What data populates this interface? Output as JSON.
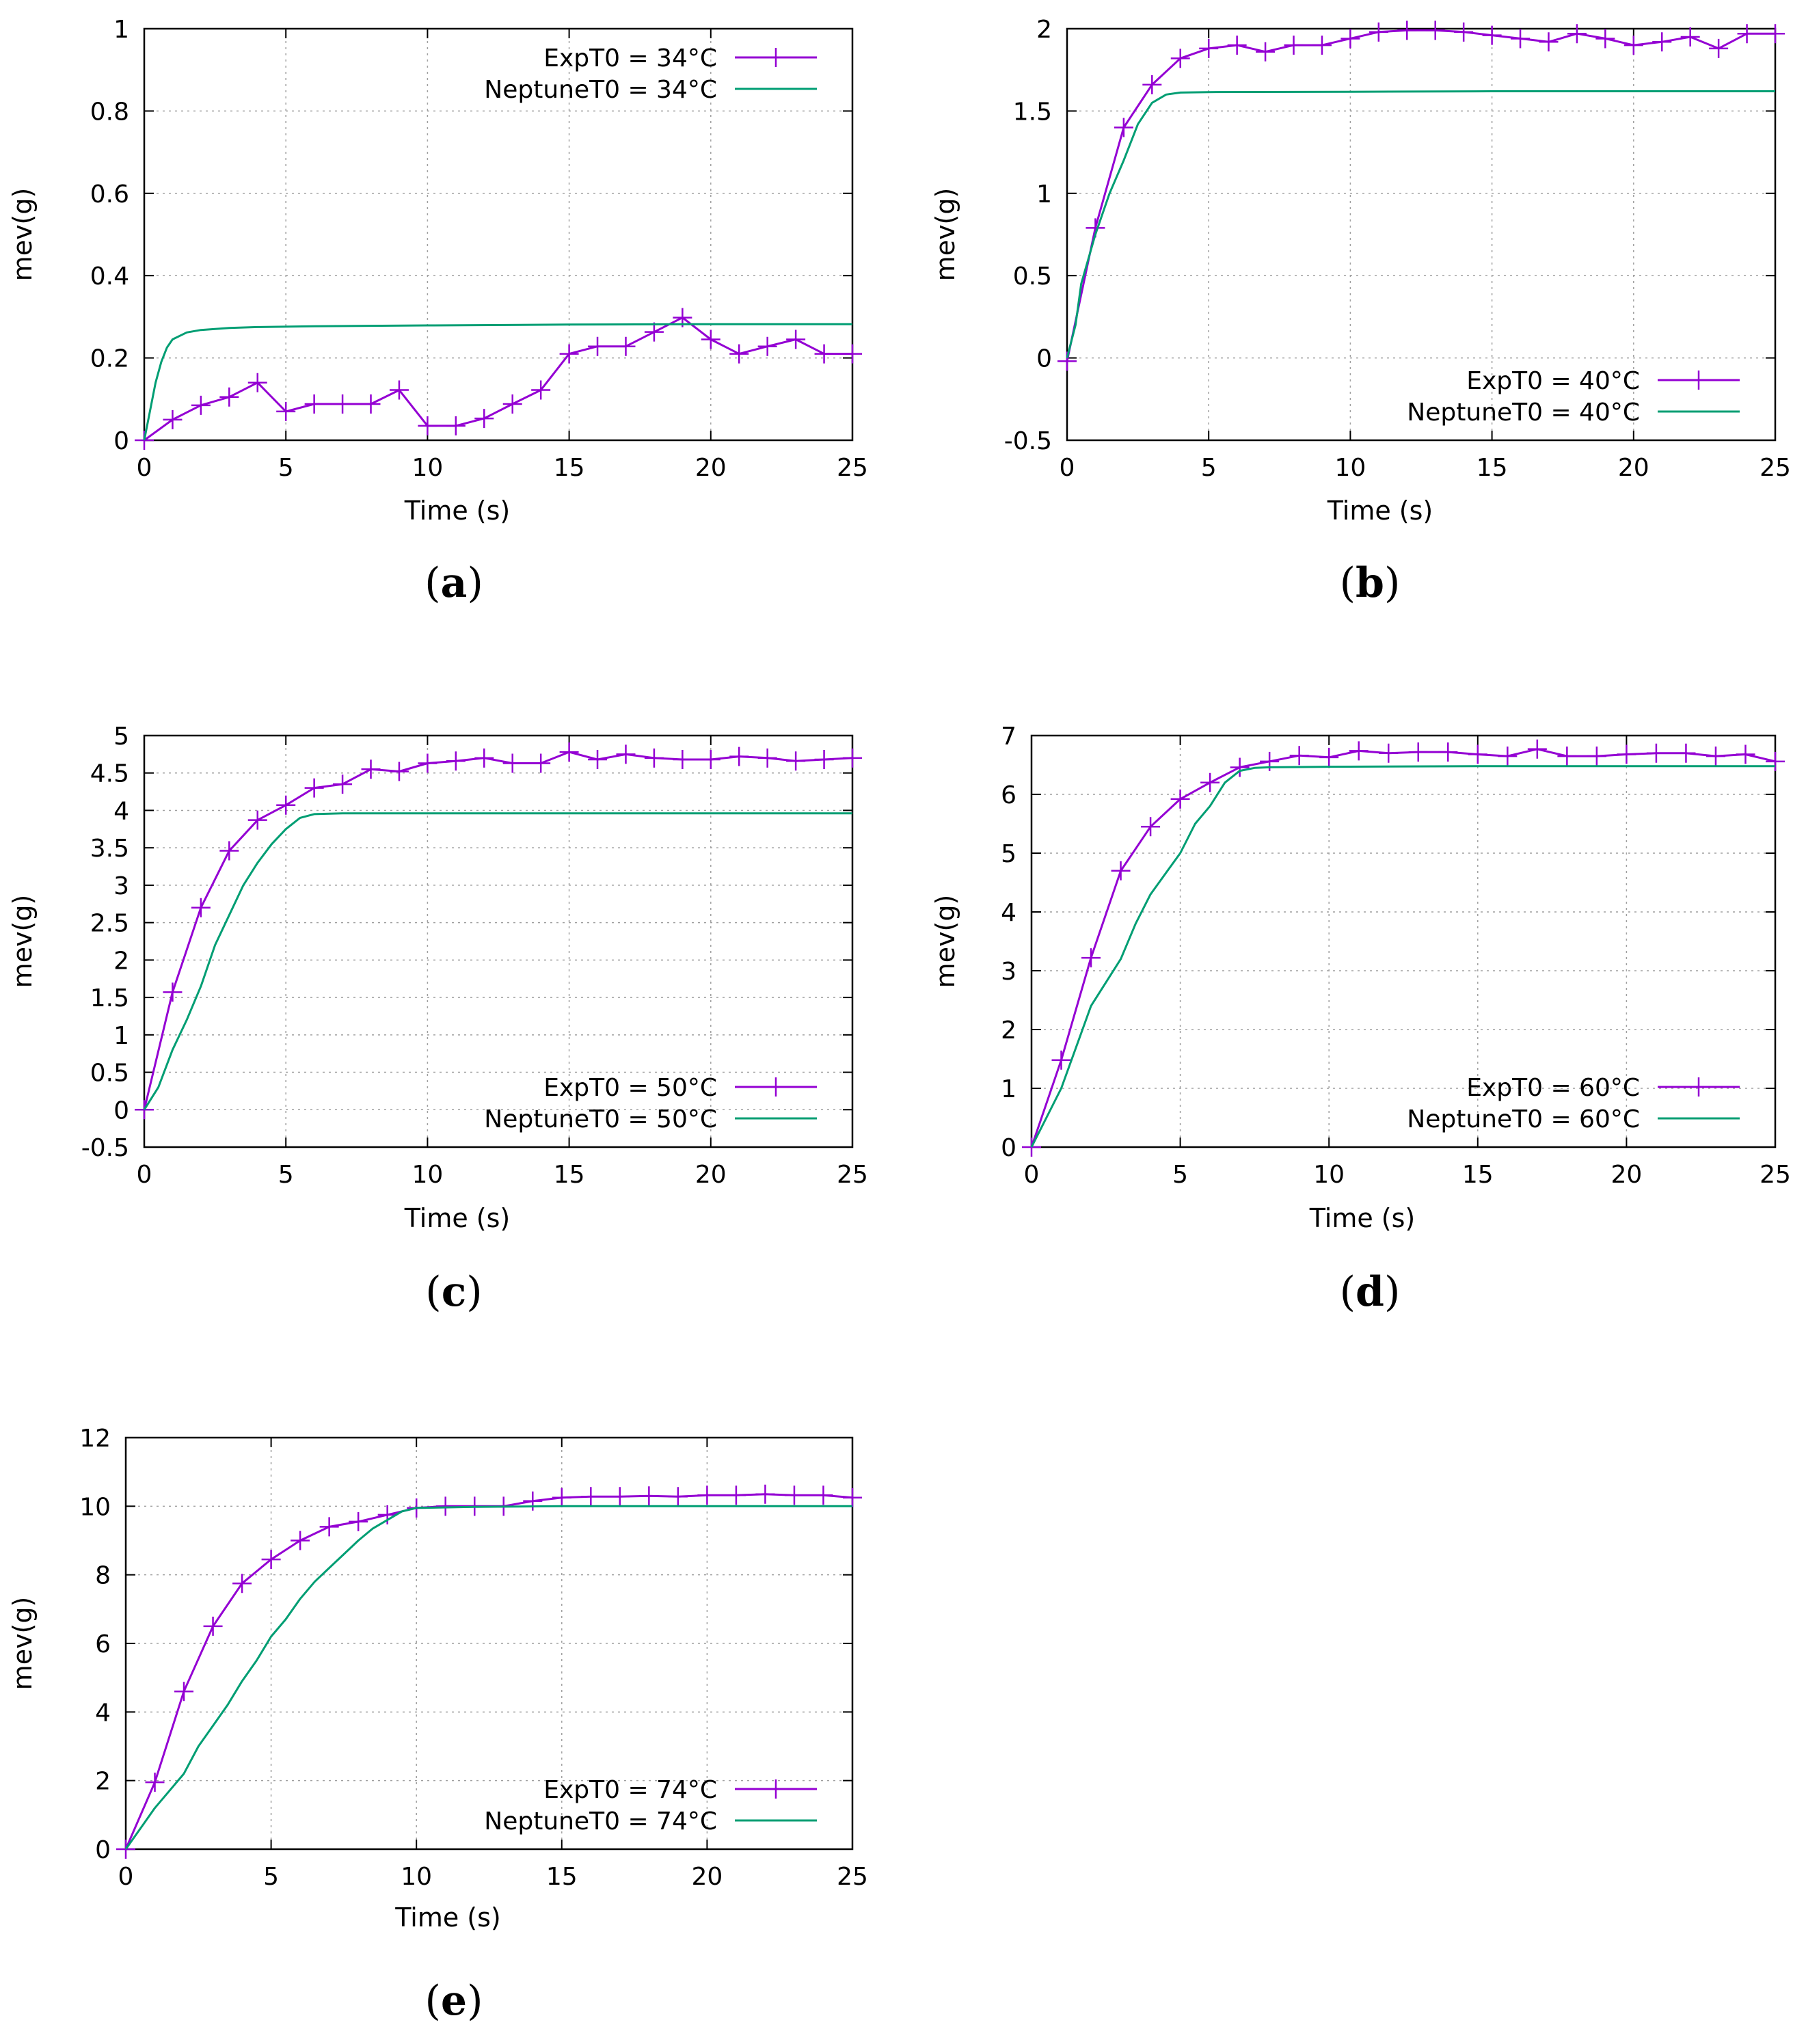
{
  "colors": {
    "exp": "#9400d3",
    "neptune": "#009e73",
    "grid": "#a0a0a0",
    "axis": "#000000"
  },
  "chart_data": [
    {
      "type": "line",
      "caption": "a",
      "xlabel": "Time (s)",
      "ylabel": "mev(g)",
      "xlim": [
        0,
        25
      ],
      "ylim": [
        0,
        1
      ],
      "xticks": [
        0,
        5,
        10,
        15,
        20,
        25
      ],
      "xtick_labels": [
        "0",
        "5",
        "10",
        "15",
        "20",
        "25"
      ],
      "yticks": [
        0,
        0.2,
        0.4,
        0.6,
        0.8,
        1
      ],
      "ytick_labels": [
        "0",
        "0.2",
        "0.4",
        "0.6",
        "0.8",
        "1"
      ],
      "grid": true,
      "legend_position": "top-right",
      "series": [
        {
          "name": "ExpT0 = 34°C",
          "kind": "exp",
          "markers": true,
          "x": [
            0,
            1,
            2,
            3,
            4,
            5,
            6,
            7,
            8,
            9,
            10,
            11,
            12,
            13,
            14,
            15,
            16,
            17,
            18,
            19,
            20,
            21,
            22,
            23,
            24,
            25
          ],
          "y": [
            0,
            0.05,
            0.085,
            0.105,
            0.14,
            0.07,
            0.088,
            0.088,
            0.088,
            0.122,
            0.035,
            0.035,
            0.053,
            0.088,
            0.122,
            0.21,
            0.228,
            0.228,
            0.263,
            0.298,
            0.245,
            0.21,
            0.228,
            0.245,
            0.21,
            0.21
          ]
        },
        {
          "name": "NeptuneT0 = 34°C",
          "kind": "neptune",
          "markers": false,
          "x": [
            0,
            0.2,
            0.4,
            0.6,
            0.8,
            1,
            1.5,
            2,
            3,
            4,
            6,
            10,
            15,
            20,
            25
          ],
          "y": [
            0,
            0.07,
            0.14,
            0.19,
            0.225,
            0.245,
            0.262,
            0.268,
            0.273,
            0.275,
            0.277,
            0.279,
            0.281,
            0.282,
            0.282
          ]
        }
      ]
    },
    {
      "type": "line",
      "caption": "b",
      "xlabel": "Time (s)",
      "ylabel": "mev(g)",
      "xlim": [
        0,
        25
      ],
      "ylim": [
        -0.5,
        2
      ],
      "xticks": [
        0,
        5,
        10,
        15,
        20,
        25
      ],
      "xtick_labels": [
        "0",
        "5",
        "10",
        "15",
        "20",
        "25"
      ],
      "yticks": [
        -0.5,
        0,
        0.5,
        1,
        1.5,
        2
      ],
      "ytick_labels": [
        "-0.5",
        "0",
        "0.5",
        "1",
        "1.5",
        "2"
      ],
      "grid": true,
      "legend_position": "bottom-right",
      "series": [
        {
          "name": "ExpT0 = 40°C",
          "kind": "exp",
          "markers": true,
          "x": [
            0,
            1,
            2,
            3,
            4,
            5,
            6,
            7,
            8,
            9,
            10,
            11,
            12,
            13,
            14,
            15,
            16,
            17,
            18,
            19,
            20,
            21,
            22,
            23,
            24,
            25
          ],
          "y": [
            -0.02,
            0.79,
            1.4,
            1.66,
            1.82,
            1.88,
            1.9,
            1.86,
            1.9,
            1.9,
            1.94,
            1.98,
            1.99,
            1.99,
            1.98,
            1.96,
            1.94,
            1.92,
            1.97,
            1.94,
            1.9,
            1.92,
            1.95,
            1.88,
            1.97,
            1.97
          ]
        },
        {
          "name": "NeptuneT0 = 40°C",
          "kind": "neptune",
          "markers": false,
          "x": [
            0,
            0.3,
            0.5,
            1,
            1.5,
            2,
            2.5,
            3,
            3.5,
            4,
            5,
            10,
            15,
            20,
            25
          ],
          "y": [
            0,
            0.2,
            0.45,
            0.75,
            1.0,
            1.2,
            1.42,
            1.55,
            1.6,
            1.612,
            1.615,
            1.617,
            1.62,
            1.62,
            1.62
          ]
        }
      ]
    },
    {
      "type": "line",
      "caption": "c",
      "xlabel": "Time (s)",
      "ylabel": "mev(g)",
      "xlim": [
        0,
        25
      ],
      "ylim": [
        -0.5,
        5
      ],
      "xticks": [
        0,
        5,
        10,
        15,
        20,
        25
      ],
      "xtick_labels": [
        "0",
        "5",
        "10",
        "15",
        "20",
        "25"
      ],
      "yticks": [
        -0.5,
        0,
        0.5,
        1,
        1.5,
        2,
        2.5,
        3,
        3.5,
        4,
        4.5,
        5
      ],
      "ytick_labels": [
        "-0.5",
        "0",
        "0.5",
        "1",
        "1.5",
        "2",
        "2.5",
        "3",
        "3.5",
        "4",
        "4.5",
        "5"
      ],
      "grid": true,
      "legend_position": "bottom-right",
      "series": [
        {
          "name": "ExpT0 = 50°C",
          "kind": "exp",
          "markers": true,
          "x": [
            0,
            1,
            2,
            3,
            4,
            5,
            6,
            7,
            8,
            9,
            10,
            11,
            12,
            13,
            14,
            15,
            16,
            17,
            18,
            19,
            20,
            21,
            22,
            23,
            24,
            25
          ],
          "y": [
            0,
            1.57,
            2.7,
            3.46,
            3.87,
            4.07,
            4.3,
            4.35,
            4.55,
            4.52,
            4.63,
            4.66,
            4.7,
            4.63,
            4.63,
            4.78,
            4.68,
            4.75,
            4.7,
            4.68,
            4.68,
            4.72,
            4.7,
            4.66,
            4.68,
            4.7
          ]
        },
        {
          "name": "NeptuneT0 = 50°C",
          "kind": "neptune",
          "markers": false,
          "x": [
            0,
            0.5,
            1,
            1.5,
            2,
            2.5,
            3,
            3.5,
            4,
            4.5,
            5,
            5.5,
            6,
            7,
            10,
            15,
            20,
            25
          ],
          "y": [
            0,
            0.3,
            0.8,
            1.2,
            1.65,
            2.2,
            2.6,
            3.0,
            3.3,
            3.55,
            3.75,
            3.9,
            3.95,
            3.96,
            3.96,
            3.96,
            3.96,
            3.96
          ]
        }
      ]
    },
    {
      "type": "line",
      "caption": "d",
      "xlabel": "Time (s)",
      "ylabel": "mev(g)",
      "xlim": [
        0,
        25
      ],
      "ylim": [
        0,
        7
      ],
      "xticks": [
        0,
        5,
        10,
        15,
        20,
        25
      ],
      "xtick_labels": [
        "0",
        "5",
        "10",
        "15",
        "20",
        "25"
      ],
      "yticks": [
        0,
        1,
        2,
        3,
        4,
        5,
        6,
        7
      ],
      "ytick_labels": [
        "0",
        "1",
        "2",
        "3",
        "4",
        "5",
        "6",
        "7"
      ],
      "grid": true,
      "legend_position": "bottom-right",
      "series": [
        {
          "name": "ExpT0 = 60°C",
          "kind": "exp",
          "markers": true,
          "x": [
            0,
            1,
            2,
            3,
            4,
            5,
            6,
            7,
            8,
            9,
            10,
            11,
            12,
            13,
            14,
            15,
            16,
            17,
            18,
            19,
            20,
            21,
            22,
            23,
            24,
            25
          ],
          "y": [
            0,
            1.48,
            3.22,
            4.7,
            5.45,
            5.92,
            6.2,
            6.46,
            6.56,
            6.66,
            6.63,
            6.74,
            6.7,
            6.72,
            6.72,
            6.68,
            6.65,
            6.77,
            6.65,
            6.65,
            6.68,
            6.7,
            6.7,
            6.65,
            6.68,
            6.56
          ]
        },
        {
          "name": "NeptuneT0 = 60°C",
          "kind": "neptune",
          "markers": false,
          "x": [
            0,
            0.5,
            1,
            1.5,
            2,
            2.5,
            3,
            3.5,
            4,
            4.5,
            5,
            5.5,
            6,
            6.5,
            7,
            7.5,
            8,
            10,
            15,
            20,
            25
          ],
          "y": [
            0,
            0.5,
            1.0,
            1.7,
            2.4,
            2.8,
            3.2,
            3.8,
            4.3,
            4.65,
            5.0,
            5.5,
            5.8,
            6.2,
            6.4,
            6.45,
            6.46,
            6.47,
            6.48,
            6.48,
            6.48
          ]
        }
      ]
    },
    {
      "type": "line",
      "caption": "e",
      "xlabel": "Time (s)",
      "ylabel": "mev(g)",
      "xlim": [
        0,
        25
      ],
      "ylim": [
        0,
        12
      ],
      "xticks": [
        0,
        5,
        10,
        15,
        20,
        25
      ],
      "xtick_labels": [
        "0",
        "5",
        "10",
        "15",
        "20",
        "25"
      ],
      "yticks": [
        0,
        2,
        4,
        6,
        8,
        10,
        12
      ],
      "ytick_labels": [
        "0",
        "2",
        "4",
        "6",
        "8",
        "10",
        "12"
      ],
      "grid": true,
      "legend_position": "bottom-right",
      "series": [
        {
          "name": "ExpT0 = 74°C",
          "kind": "exp",
          "markers": true,
          "x": [
            0,
            1,
            2,
            3,
            4,
            5,
            6,
            7,
            8,
            9,
            10,
            11,
            12,
            13,
            14,
            15,
            16,
            17,
            18,
            19,
            20,
            21,
            22,
            23,
            24,
            25
          ],
          "y": [
            0,
            1.95,
            4.6,
            6.5,
            7.75,
            8.45,
            9.0,
            9.4,
            9.55,
            9.75,
            9.95,
            10.0,
            10.0,
            10.0,
            10.15,
            10.25,
            10.28,
            10.28,
            10.3,
            10.28,
            10.32,
            10.32,
            10.35,
            10.32,
            10.32,
            10.25
          ]
        },
        {
          "name": "NeptuneT0 = 74°C",
          "kind": "neptune",
          "markers": false,
          "x": [
            0,
            0.5,
            1,
            1.5,
            2,
            2.5,
            3,
            3.5,
            4,
            4.5,
            5,
            5.5,
            6,
            6.5,
            7,
            7.5,
            8,
            8.5,
            9,
            9.5,
            10,
            12,
            15,
            20,
            25
          ],
          "y": [
            0,
            0.6,
            1.2,
            1.7,
            2.2,
            3.0,
            3.6,
            4.2,
            4.9,
            5.5,
            6.2,
            6.7,
            7.3,
            7.8,
            8.2,
            8.6,
            9.0,
            9.35,
            9.6,
            9.85,
            9.95,
            9.98,
            10.0,
            10.0,
            10.0
          ]
        }
      ]
    }
  ]
}
